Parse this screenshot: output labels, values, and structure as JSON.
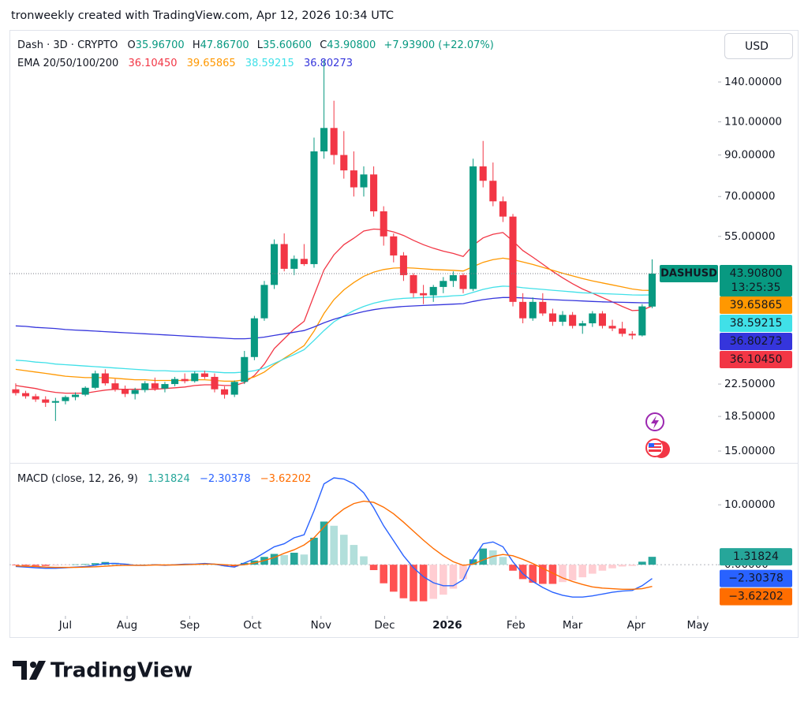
{
  "caption": "tronweekly created with TradingView.com, Apr 12, 2026 10:34 UTC",
  "currency": "USD",
  "brand": "TradingView",
  "chart_data": [
    {
      "type": "candlestick",
      "title": "Dash · 3D · CRYPTO",
      "ohlc_labels": [
        {
          "label": "O",
          "value": "35.96700"
        },
        {
          "label": "H",
          "value": "47.86700"
        },
        {
          "label": "L",
          "value": "35.60600"
        },
        {
          "label": "C",
          "value": "43.90800"
        }
      ],
      "change_label": "+7.93900 (+22.07%)",
      "symbol": "DASHUSD",
      "last_price_label": "43.90800",
      "countdown": "13:25:35",
      "up_color": "#089981",
      "down_color": "#f23645",
      "log_scale": true,
      "grid": false,
      "xlim": [
        -0.63,
        70.63
      ],
      "xticks": [
        {
          "value": 5.0,
          "label": "Jul"
        },
        {
          "value": 11.2,
          "label": "Aug"
        },
        {
          "value": 17.5,
          "label": "Sep"
        },
        {
          "value": 23.8,
          "label": "Oct"
        },
        {
          "value": 30.7,
          "label": "Nov"
        },
        {
          "value": 37.1,
          "label": "Dec"
        },
        {
          "value": 43.4,
          "label": "2026"
        },
        {
          "value": 50.3,
          "label": "Feb"
        },
        {
          "value": 56.0,
          "label": "Mar"
        },
        {
          "value": 62.4,
          "label": "Apr"
        },
        {
          "value": 68.6,
          "label": "May"
        }
      ],
      "ylim": [
        14.1,
        190
      ],
      "yticks": [
        {
          "value": 140,
          "label": "140.00000"
        },
        {
          "value": 110,
          "label": "110.00000"
        },
        {
          "value": 90,
          "label": "90.00000"
        },
        {
          "value": 70,
          "label": "70.00000"
        },
        {
          "value": 55,
          "label": "55.00000"
        },
        {
          "value": 22.5,
          "label": "22.50000"
        },
        {
          "value": 18.5,
          "label": "18.50000"
        },
        {
          "value": 15,
          "label": "15.00000"
        }
      ],
      "candles": [
        [
          21.8,
          22.6,
          21.0,
          21.3
        ],
        [
          21.3,
          21.6,
          20.6,
          20.9
        ],
        [
          20.9,
          21.2,
          20.2,
          20.5
        ],
        [
          20.5,
          20.9,
          19.6,
          20.1
        ],
        [
          20.1,
          20.7,
          18.0,
          20.3
        ],
        [
          20.3,
          21.0,
          19.9,
          20.8
        ],
        [
          20.8,
          21.4,
          20.4,
          21.1
        ],
        [
          21.1,
          22.2,
          20.9,
          22.0
        ],
        [
          22.0,
          24.4,
          21.8,
          24.0
        ],
        [
          24.0,
          24.6,
          22.3,
          22.6
        ],
        [
          22.6,
          23.2,
          21.5,
          21.8
        ],
        [
          21.8,
          22.3,
          20.8,
          21.2
        ],
        [
          21.2,
          22.0,
          20.5,
          21.7
        ],
        [
          21.7,
          22.9,
          21.4,
          22.6
        ],
        [
          22.6,
          23.4,
          21.6,
          21.9
        ],
        [
          21.9,
          22.8,
          21.4,
          22.5
        ],
        [
          22.5,
          23.5,
          22.2,
          23.2
        ],
        [
          23.2,
          24.0,
          22.6,
          22.9
        ],
        [
          22.9,
          24.3,
          22.7,
          24.0
        ],
        [
          24.0,
          24.4,
          23.2,
          23.5
        ],
        [
          23.5,
          24.0,
          21.4,
          21.8
        ],
        [
          21.8,
          22.2,
          20.6,
          21.1
        ],
        [
          21.1,
          23.0,
          20.8,
          22.8
        ],
        [
          22.8,
          27.5,
          22.5,
          26.5
        ],
        [
          26.5,
          34.0,
          26.0,
          33.5
        ],
        [
          33.5,
          42.0,
          33.0,
          41.0
        ],
        [
          41.0,
          54.0,
          40.0,
          52.5
        ],
        [
          52.5,
          56.0,
          44.5,
          45.2
        ],
        [
          45.2,
          49.0,
          43.5,
          48.0
        ],
        [
          48.0,
          52.5,
          46.0,
          46.5
        ],
        [
          46.5,
          100,
          45.5,
          92
        ],
        [
          92,
          160,
          88,
          106
        ],
        [
          106,
          125,
          85,
          90
        ],
        [
          90,
          104,
          78,
          82
        ],
        [
          82,
          92,
          70,
          74
        ],
        [
          74,
          84,
          70,
          80
        ],
        [
          80,
          84,
          62,
          64
        ],
        [
          64,
          66,
          52,
          55
        ],
        [
          55,
          56,
          47,
          49
        ],
        [
          49,
          50,
          42,
          43.5
        ],
        [
          43.5,
          44,
          38,
          39
        ],
        [
          39,
          41,
          36.5,
          38.5
        ],
        [
          38.5,
          41,
          37,
          40.5
        ],
        [
          40.5,
          43,
          39,
          42
        ],
        [
          42,
          44.5,
          40.5,
          43.5
        ],
        [
          43.5,
          44,
          39,
          40
        ],
        [
          40,
          88,
          39.5,
          84
        ],
        [
          84,
          98,
          74,
          77
        ],
        [
          77,
          86,
          66,
          68
        ],
        [
          68,
          70,
          60,
          62
        ],
        [
          62,
          63,
          36,
          37
        ],
        [
          37,
          39,
          32.5,
          33.5
        ],
        [
          33.5,
          38,
          33,
          37
        ],
        [
          37,
          39,
          34,
          34.5
        ],
        [
          34.5,
          35.5,
          32,
          32.8
        ],
        [
          32.8,
          35,
          32,
          34.2
        ],
        [
          34.2,
          34.8,
          31.5,
          32.0
        ],
        [
          32,
          33,
          30.5,
          32.5
        ],
        [
          32.5,
          35,
          31.8,
          34.5
        ],
        [
          34.5,
          35,
          31.5,
          32.0
        ],
        [
          32,
          33.2,
          31,
          31.5
        ],
        [
          31.5,
          32.8,
          30,
          30.5
        ],
        [
          30.5,
          31,
          29.5,
          30.2
        ],
        [
          30.2,
          36.5,
          30,
          36
        ],
        [
          35.967,
          47.867,
          35.606,
          43.908
        ]
      ],
      "overlays": {
        "title": "EMA 20/50/100/200",
        "series": [
          {
            "color": "#f23645",
            "last_label": "36.10450",
            "values": [
              22.3,
              22.1,
              21.9,
              21.6,
              21.4,
              21.3,
              21.3,
              21.3,
              21.5,
              21.7,
              21.8,
              21.8,
              21.8,
              21.8,
              21.8,
              21.9,
              22.0,
              22.1,
              22.3,
              22.4,
              22.4,
              22.3,
              22.3,
              22.7,
              23.7,
              25.4,
              27.9,
              29.6,
              31.4,
              32.9,
              38.5,
              44.9,
              49.2,
              52.3,
              54.4,
              56.8,
              57.5,
              57.3,
              56.5,
              55.3,
              53.7,
              52.3,
              51.2,
              50.3,
              49.6,
              48.7,
              52.1,
              54.5,
              55.7,
              56.3,
              53.5,
              50.5,
              48.5,
              46.5,
              44.5,
              42.8,
              41.3,
              40.0,
              39.0,
              38.0,
              37.0,
              36.0,
              35.1,
              35.2,
              36.1045
            ]
          },
          {
            "color": "#ff9800",
            "last_label": "39.65865",
            "values": [
              24.6,
              24.4,
              24.2,
              24.0,
              23.8,
              23.6,
              23.5,
              23.4,
              23.4,
              23.4,
              23.3,
              23.2,
              23.1,
              23.1,
              23.0,
              23.0,
              23.0,
              23.0,
              23.1,
              23.1,
              23.0,
              22.9,
              22.9,
              23.1,
              23.5,
              24.2,
              25.3,
              26.3,
              27.3,
              28.4,
              31.0,
              34.5,
              37.5,
              39.8,
              41.6,
              43.2,
              44.3,
              45.0,
              45.4,
              45.5,
              45.4,
              45.2,
              45.0,
              44.9,
              44.8,
              44.6,
              45.8,
              47.0,
              47.8,
              48.2,
              47.8,
              47.1,
              46.4,
              45.6,
              44.8,
              44.0,
              43.3,
              42.6,
              42.0,
              41.5,
              41.0,
              40.5,
              40.0,
              39.7,
              39.65865
            ]
          },
          {
            "color": "#40e0e8",
            "last_label": "38.59215",
            "values": [
              26.0,
              25.9,
              25.7,
              25.6,
              25.4,
              25.3,
              25.2,
              25.1,
              25.0,
              24.9,
              24.8,
              24.7,
              24.6,
              24.5,
              24.4,
              24.4,
              24.3,
              24.3,
              24.3,
              24.3,
              24.2,
              24.1,
              24.1,
              24.2,
              24.4,
              24.8,
              25.5,
              26.2,
              26.9,
              27.7,
              29.3,
              31.1,
              32.8,
              34.0,
              35.1,
              36.0,
              36.7,
              37.2,
              37.6,
              37.8,
              37.9,
              38.0,
              38.1,
              38.2,
              38.4,
              38.5,
              39.2,
              39.9,
              40.4,
              40.7,
              40.6,
              40.3,
              40.1,
              39.9,
              39.7,
              39.5,
              39.3,
              39.1,
              39.0,
              38.9,
              38.8,
              38.7,
              38.6,
              38.55,
              38.59215
            ]
          },
          {
            "color": "#3535dc",
            "last_label": "36.80273",
            "values": [
              32.0,
              31.9,
              31.7,
              31.6,
              31.5,
              31.3,
              31.2,
              31.1,
              31.0,
              30.9,
              30.8,
              30.7,
              30.6,
              30.5,
              30.4,
              30.3,
              30.2,
              30.1,
              30.0,
              29.9,
              29.8,
              29.7,
              29.6,
              29.6,
              29.7,
              29.9,
              30.2,
              30.5,
              30.8,
              31.1,
              31.8,
              32.6,
              33.3,
              33.9,
              34.4,
              34.9,
              35.3,
              35.6,
              35.8,
              36.0,
              36.1,
              36.2,
              36.3,
              36.4,
              36.5,
              36.6,
              37.1,
              37.5,
              37.8,
              38.0,
              38.0,
              37.9,
              37.8,
              37.6,
              37.5,
              37.4,
              37.3,
              37.2,
              37.1,
              37.0,
              36.95,
              36.9,
              36.85,
              36.8,
              36.80273
            ]
          }
        ]
      }
    },
    {
      "type": "macd",
      "title": "MACD (close, 12, 26, 9)",
      "ylim": [
        -8.4,
        16.6
      ],
      "yticks": [
        {
          "value": 10,
          "label": "10.00000"
        },
        {
          "value": 0,
          "label": "0.00000"
        }
      ],
      "histogram": {
        "colors": [
          "#26a69a",
          "#b2dfdb",
          "#ff5252",
          "#ffcdd2"
        ],
        "last_label": "1.31824",
        "values": [
          -0.1,
          -0.15,
          -0.2,
          -0.2,
          -0.15,
          -0.05,
          0.05,
          0.1,
          0.25,
          0.45,
          0.35,
          0.2,
          0,
          0,
          0.05,
          -0.05,
          0.05,
          0.1,
          0.05,
          0.1,
          0,
          -0.2,
          -0.3,
          0.3,
          0.7,
          1.3,
          1.8,
          1.6,
          2.0,
          1.7,
          4.5,
          7.2,
          6.5,
          5.0,
          3.3,
          1.4,
          -0.9,
          -3.1,
          -4.5,
          -5.6,
          -6.1,
          -6.1,
          -5.7,
          -5.0,
          -4.0,
          -2.4,
          0.9,
          2.7,
          2.4,
          1.3,
          -1.0,
          -2.4,
          -3.0,
          -3.2,
          -3.2,
          -2.9,
          -2.6,
          -2.1,
          -1.5,
          -1.0,
          -0.6,
          -0.3,
          -0.2,
          0.5,
          1.31824
        ]
      },
      "series": [
        {
          "color": "#2962ff",
          "last_label": "−2.30378",
          "values": [
            -0.3,
            -0.4,
            -0.5,
            -0.6,
            -0.6,
            -0.5,
            -0.4,
            -0.3,
            -0.1,
            0.2,
            0.2,
            0.1,
            -0.1,
            -0.1,
            0,
            -0.1,
            0,
            0.1,
            0.1,
            0.2,
            0.1,
            -0.2,
            -0.4,
            0.3,
            1,
            2,
            3,
            3.5,
            4.5,
            5,
            9,
            13.5,
            14.5,
            14.3,
            13.5,
            12,
            9.5,
            6.5,
            4,
            1.5,
            -0.5,
            -2,
            -3,
            -3.5,
            -3.5,
            -2.5,
            1,
            3.5,
            3.8,
            3,
            0.5,
            -1.5,
            -2.8,
            -3.8,
            -4.6,
            -5.1,
            -5.4,
            -5.4,
            -5.2,
            -4.9,
            -4.6,
            -4.4,
            -4.3,
            -3.5,
            -2.30378
          ]
        },
        {
          "color": "#ff6d00",
          "last_label": "−3.62202",
          "values": [
            -0.2,
            -0.25,
            -0.3,
            -0.4,
            -0.45,
            -0.45,
            -0.45,
            -0.4,
            -0.35,
            -0.25,
            -0.15,
            -0.1,
            -0.1,
            -0.1,
            -0.05,
            -0.05,
            -0.05,
            0,
            0.05,
            0.1,
            0.1,
            0,
            -0.1,
            0,
            0.3,
            0.7,
            1.2,
            1.9,
            2.5,
            3.3,
            4.5,
            6.3,
            8.0,
            9.3,
            10.2,
            10.6,
            10.4,
            9.6,
            8.5,
            7.1,
            5.6,
            4.1,
            2.7,
            1.5,
            0.5,
            -0.1,
            0.1,
            0.8,
            1.4,
            1.7,
            1.5,
            0.9,
            0.2,
            -0.6,
            -1.4,
            -2.2,
            -2.8,
            -3.3,
            -3.7,
            -3.9,
            -4.0,
            -4.1,
            -4.1,
            -4.0,
            -3.62202
          ]
        }
      ]
    }
  ]
}
